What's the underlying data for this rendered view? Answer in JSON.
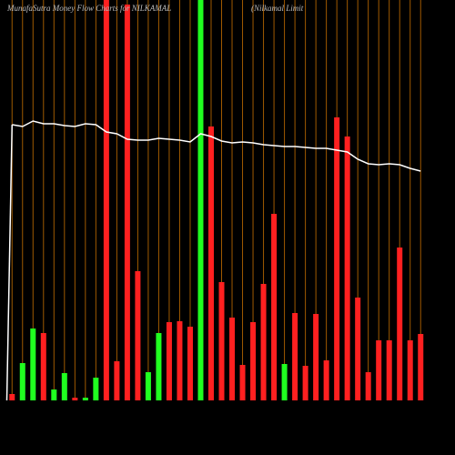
{
  "chart_data": {
    "type": "bar",
    "title": "MunafaSutra  Money Flow  Charts for NILKAMAL",
    "subtitle": "(Nilkamal Limit",
    "ylim": [
      0,
      440
    ],
    "values": [
      7,
      41,
      79,
      74,
      12,
      30,
      3,
      3,
      25,
      440,
      43,
      435,
      142,
      31,
      74,
      86,
      87,
      81,
      440,
      301,
      130,
      91,
      39,
      86,
      128,
      205,
      40,
      96,
      38,
      95,
      44,
      311,
      290,
      113,
      31,
      66,
      66,
      168,
      66,
      73
    ],
    "colors": [
      "#ff2020",
      "#20ff20",
      "#20ff20",
      "#ff2020",
      "#20ff20",
      "#20ff20",
      "#ff2020",
      "#20ff20",
      "#20ff20",
      "#ff2020",
      "#ff2020",
      "#ff2020",
      "#ff2020",
      "#20ff20",
      "#20ff20",
      "#ff2020",
      "#ff2020",
      "#ff2020",
      "#20ff20",
      "#ff2020",
      "#ff2020",
      "#ff2020",
      "#ff2020",
      "#ff2020",
      "#ff2020",
      "#ff2020",
      "#20ff20",
      "#ff2020",
      "#ff2020",
      "#ff2020",
      "#ff2020",
      "#ff2020",
      "#ff2020",
      "#ff2020",
      "#ff2020",
      "#ff2020",
      "#ff2020",
      "#ff2020",
      "#ff2020",
      "#ff2020"
    ],
    "line_values": [
      303,
      301,
      307,
      304,
      304,
      302,
      301,
      304,
      303,
      295,
      293,
      287,
      286,
      286,
      288,
      287,
      286,
      284,
      293,
      290,
      285,
      283,
      284,
      283,
      281,
      280,
      279,
      279,
      278,
      277,
      277,
      275,
      273,
      265,
      260,
      259,
      260,
      259,
      255,
      252
    ],
    "line_color": "#ffffff",
    "grid_color": "#a05a00",
    "grid": true
  }
}
